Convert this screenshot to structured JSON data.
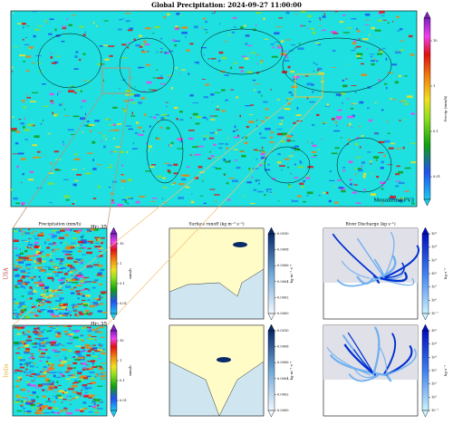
{
  "title": "Global Precipitation: 2024-09-27 11:00:00",
  "global_map": {
    "credit": "Mouallem@FV3",
    "colorbar": {
      "label": "Precip (mm/h)",
      "ticks": [
        "10",
        "1",
        "0.1",
        "0.01"
      ]
    }
  },
  "rows": [
    {
      "region": "USA",
      "panels": [
        {
          "title": "Precipitation (mm/h)",
          "hour": "Hr: 35",
          "colorbar": {
            "label": "mm/h",
            "ticks": [
              "10",
              "1",
              "0.1",
              "0.01"
            ]
          }
        },
        {
          "title": "Surface runoff (kg m⁻² s⁻¹)",
          "colorbar": {
            "label": "kg m⁻² s⁻¹",
            "ticks": [
              "0.0010",
              "0.0008",
              "0.0006",
              "0.0004",
              "0.0002",
              "0.0000"
            ]
          }
        },
        {
          "title": "River Discharge (kg s⁻¹)",
          "colorbar": {
            "label": "kg s⁻¹",
            "ticks": [
              "10⁵",
              "10⁴",
              "10³",
              "10²",
              "10¹",
              "10⁰",
              "10⁻¹"
            ]
          }
        }
      ]
    },
    {
      "region": "India",
      "panels": [
        {
          "hour": "Hr: 35",
          "colorbar": {
            "label": "mm/h",
            "ticks": [
              "10",
              "1",
              "0.1",
              "0.01"
            ]
          }
        },
        {
          "colorbar": {
            "label": "kg m⁻² s⁻¹",
            "ticks": [
              "0.0010",
              "0.0008",
              "0.0006",
              "0.0004",
              "0.0002",
              "0.0000"
            ]
          }
        },
        {
          "colorbar": {
            "label": "kg s⁻¹",
            "ticks": [
              "10⁵",
              "10⁴",
              "10³",
              "10²",
              "10¹",
              "10⁰",
              "10⁻¹"
            ]
          }
        }
      ]
    }
  ]
}
